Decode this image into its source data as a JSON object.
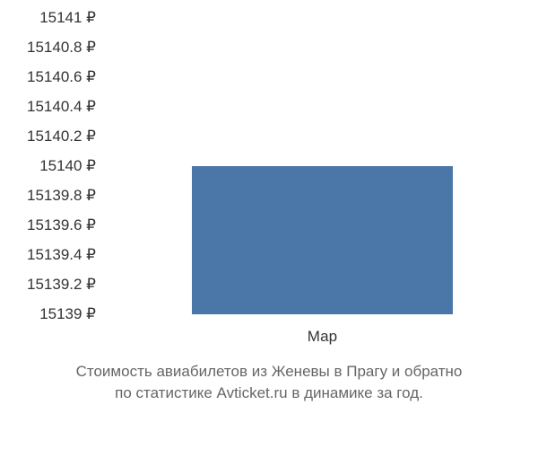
{
  "chart": {
    "type": "bar",
    "y_ticks": [
      {
        "label": "15141 ₽",
        "value": 15141
      },
      {
        "label": "15140.8 ₽",
        "value": 15140.8
      },
      {
        "label": "15140.6 ₽",
        "value": 15140.6
      },
      {
        "label": "15140.4 ₽",
        "value": 15140.4
      },
      {
        "label": "15140.2 ₽",
        "value": 15140.2
      },
      {
        "label": "15140 ₽",
        "value": 15140
      },
      {
        "label": "15139.8 ₽",
        "value": 15139.8
      },
      {
        "label": "15139.6 ₽",
        "value": 15139.6
      },
      {
        "label": "15139.4 ₽",
        "value": 15139.4
      },
      {
        "label": "15139.2 ₽",
        "value": 15139.2
      },
      {
        "label": "15139 ₽",
        "value": 15139
      }
    ],
    "y_min": 15139,
    "y_max": 15141,
    "x_labels": [
      "Мар"
    ],
    "bars": [
      {
        "category": "Мар",
        "value": 15140,
        "x_center_pct": 52,
        "width_pct": 62
      }
    ],
    "bar_color": "#4a76a8",
    "background_color": "#ffffff",
    "tick_font_color": "#333333",
    "tick_font_size": 17,
    "caption_font_color": "#666666",
    "caption_font_size": 17
  },
  "caption": {
    "line1": "Стоимость авиабилетов из Женевы в Прагу и обратно",
    "line2": "по статистике Avticket.ru в динамике за год."
  }
}
